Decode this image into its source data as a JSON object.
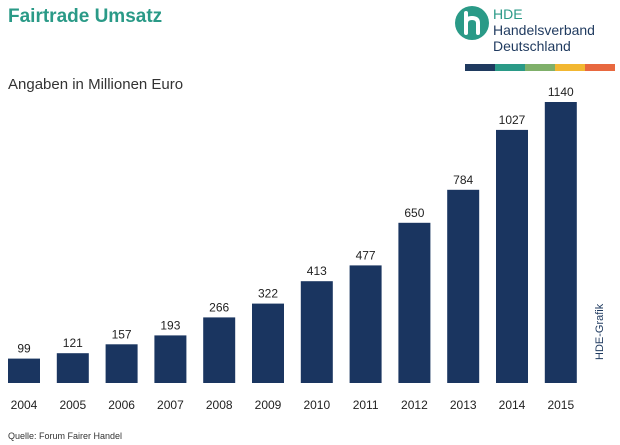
{
  "header": {
    "title": "Fairtrade Umsatz",
    "subtitle": "Angaben in Millionen Euro"
  },
  "logo": {
    "abbr": "HDE",
    "line1": "Handelsverband",
    "line2": "Deutschland",
    "icon": "hde-logo-icon",
    "stripe_colors": [
      "#1f3a5f",
      "#2a9a87",
      "#7fb06a",
      "#f2b731",
      "#e8683f"
    ]
  },
  "footer": {
    "source": "Quelle:  Forum Fairer Handel",
    "credit": "HDE-Grafik"
  },
  "colors": {
    "bar": "#1a3560",
    "accent": "#2a9a87"
  },
  "chart_data": {
    "type": "bar",
    "title": "Fairtrade Umsatz",
    "subtitle": "Angaben in Millionen Euro",
    "categories": [
      "2004",
      "2005",
      "2006",
      "2007",
      "2008",
      "2009",
      "2010",
      "2011",
      "2012",
      "2013",
      "2014",
      "2015"
    ],
    "values": [
      99,
      121,
      157,
      193,
      266,
      322,
      413,
      477,
      650,
      784,
      1027,
      1140
    ],
    "ylim": [
      0,
      1140
    ],
    "grid": false,
    "legend": "none"
  }
}
